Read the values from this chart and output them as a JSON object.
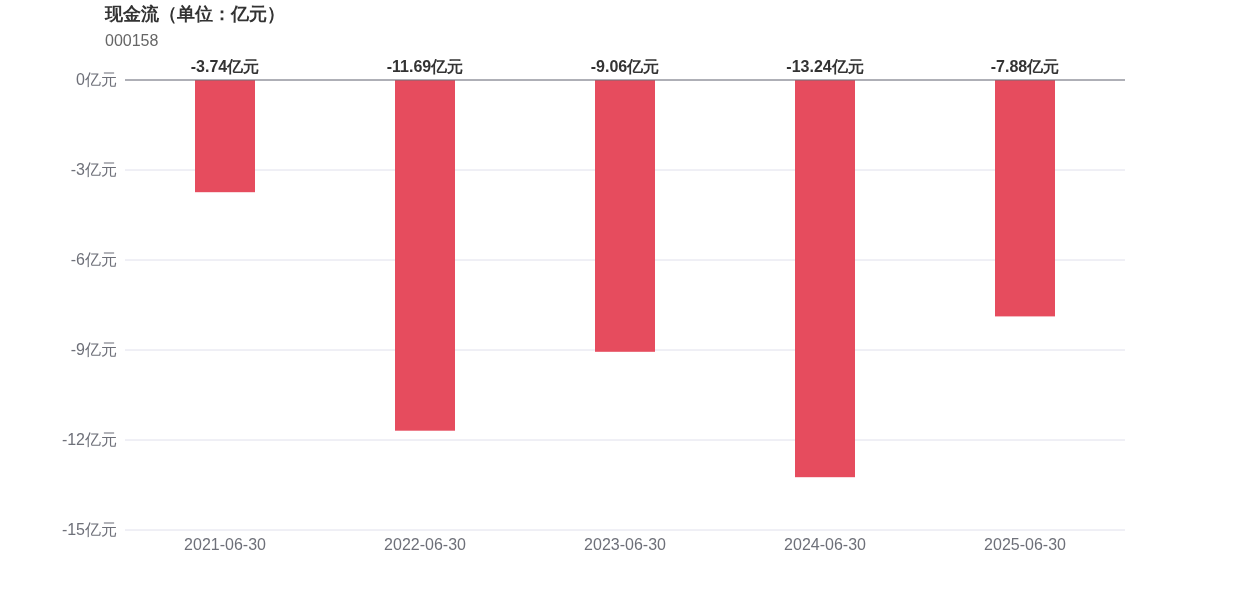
{
  "chart_data": {
    "type": "bar",
    "title": "现金流（单位：亿元）",
    "subtitle": "000158",
    "categories": [
      "2021-06-30",
      "2022-06-30",
      "2023-06-30",
      "2024-06-30",
      "2025-06-30"
    ],
    "values": [
      -3.74,
      -11.69,
      -9.06,
      -13.24,
      -7.88
    ],
    "value_labels": [
      "-3.74亿元",
      "-11.69亿元",
      "-9.06亿元",
      "-13.24亿元",
      "-7.88亿元"
    ],
    "color": "#e64c5e",
    "ylim": [
      -15,
      0
    ],
    "yticks": [
      {
        "value": 0,
        "label": "0亿元"
      },
      {
        "value": -3,
        "label": "-3亿元"
      },
      {
        "value": -6,
        "label": "-6亿元"
      },
      {
        "value": -9,
        "label": "-9亿元"
      },
      {
        "value": -12,
        "label": "-12亿元"
      },
      {
        "value": -15,
        "label": "-15亿元"
      }
    ],
    "grid": "y"
  }
}
